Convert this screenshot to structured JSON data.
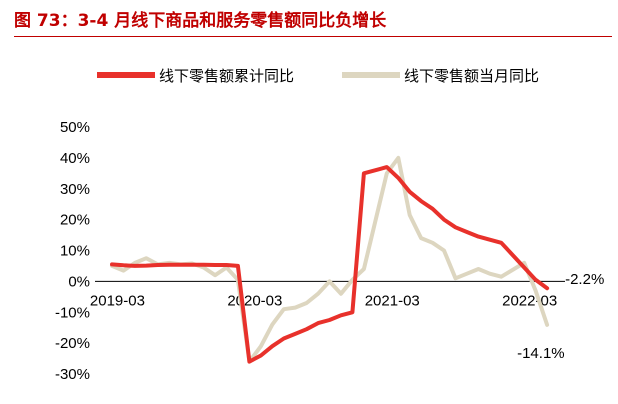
{
  "chart_title": "图 73：3-4 月线下商品和服务零售额同比负增长",
  "colors": {
    "title": "#c00000",
    "cumulative": "#e8312b",
    "monthly": "#ddd6c0",
    "axis": "#000000"
  },
  "chart_data": {
    "type": "line",
    "title": "图 73：3-4 月线下商品和服务零售额同比负增长",
    "xlabel": "",
    "ylabel": "",
    "ylim": [
      -30,
      50
    ],
    "yticks": [
      -30,
      -20,
      -10,
      0,
      10,
      20,
      30,
      40,
      50
    ],
    "ytick_labels": [
      "-30%",
      "-20%",
      "-10%",
      "0%",
      "10%",
      "20%",
      "30%",
      "40%",
      "50%"
    ],
    "xtick_labels": [
      "2019-03",
      "2020-03",
      "2021-03",
      "2022-03"
    ],
    "xtick_values": [
      "2019-03",
      "2020-03",
      "2021-03",
      "2022-03"
    ],
    "grid": false,
    "legend_position": "top",
    "series": [
      {
        "name": "线下零售额累计同比",
        "color": "#e8312b",
        "points": [
          [
            "2019-02",
            5.5
          ],
          [
            "2019-03",
            5.2
          ],
          [
            "2019-04",
            5.0
          ],
          [
            "2019-05",
            5.1
          ],
          [
            "2019-06",
            5.3
          ],
          [
            "2019-07",
            5.4
          ],
          [
            "2019-08",
            5.4
          ],
          [
            "2019-09",
            5.4
          ],
          [
            "2019-10",
            5.4
          ],
          [
            "2019-11",
            5.3
          ],
          [
            "2019-12",
            5.3
          ],
          [
            "2020-01",
            5.0
          ],
          [
            "2020-02",
            -26.0
          ],
          [
            "2020-03",
            -24.0
          ],
          [
            "2020-04",
            -21.0
          ],
          [
            "2020-05",
            -18.5
          ],
          [
            "2020-06",
            -17.0
          ],
          [
            "2020-07",
            -15.5
          ],
          [
            "2020-08",
            -13.5
          ],
          [
            "2020-09",
            -12.5
          ],
          [
            "2020-10",
            -11.0
          ],
          [
            "2020-11",
            -10.0
          ],
          [
            "2020-12",
            35.0
          ],
          [
            "2021-02",
            37.0
          ],
          [
            "2021-03",
            33.5
          ],
          [
            "2021-04",
            29.0
          ],
          [
            "2021-05",
            26.0
          ],
          [
            "2021-06",
            23.5
          ],
          [
            "2021-07",
            20.0
          ],
          [
            "2021-08",
            17.5
          ],
          [
            "2021-09",
            16.0
          ],
          [
            "2021-10",
            14.5
          ],
          [
            "2021-11",
            13.5
          ],
          [
            "2021-12",
            12.5
          ],
          [
            "2022-02",
            4.5
          ],
          [
            "2022-03",
            0.5
          ],
          [
            "2022-04",
            -2.2
          ]
        ]
      },
      {
        "name": "线下零售额当月同比",
        "color": "#ddd6c0",
        "points": [
          [
            "2019-02",
            5.0
          ],
          [
            "2019-03",
            3.5
          ],
          [
            "2019-04",
            6.0
          ],
          [
            "2019-05",
            7.5
          ],
          [
            "2019-06",
            5.5
          ],
          [
            "2019-07",
            6.0
          ],
          [
            "2019-08",
            5.5
          ],
          [
            "2019-09",
            5.8
          ],
          [
            "2019-10",
            4.5
          ],
          [
            "2019-11",
            2.0
          ],
          [
            "2019-12",
            4.5
          ],
          [
            "2020-01",
            0.5
          ],
          [
            "2020-02",
            -26.0
          ],
          [
            "2020-03",
            -21.0
          ],
          [
            "2020-04",
            -14.0
          ],
          [
            "2020-05",
            -9.0
          ],
          [
            "2020-06",
            -8.5
          ],
          [
            "2020-07",
            -7.0
          ],
          [
            "2020-08",
            -4.0
          ],
          [
            "2020-09",
            0.0
          ],
          [
            "2020-10",
            -4.0
          ],
          [
            "2020-11",
            0.5
          ],
          [
            "2020-12",
            4.0
          ],
          [
            "2021-02",
            35.0
          ],
          [
            "2021-03",
            40.0
          ],
          [
            "2021-04",
            21.5
          ],
          [
            "2021-05",
            14.0
          ],
          [
            "2021-06",
            12.5
          ],
          [
            "2021-07",
            10.0
          ],
          [
            "2021-08",
            1.0
          ],
          [
            "2021-09",
            2.5
          ],
          [
            "2021-10",
            4.0
          ],
          [
            "2021-11",
            2.5
          ],
          [
            "2021-12",
            1.5
          ],
          [
            "2022-02",
            6.0
          ],
          [
            "2022-03",
            -3.0
          ],
          [
            "2022-04",
            -14.1
          ]
        ]
      }
    ],
    "annotations": [
      {
        "text": "-2.2%",
        "at": [
          "2022-04",
          -2.2
        ]
      },
      {
        "text": "-14.1%",
        "at": [
          "2022-04",
          -14.1
        ]
      }
    ]
  }
}
